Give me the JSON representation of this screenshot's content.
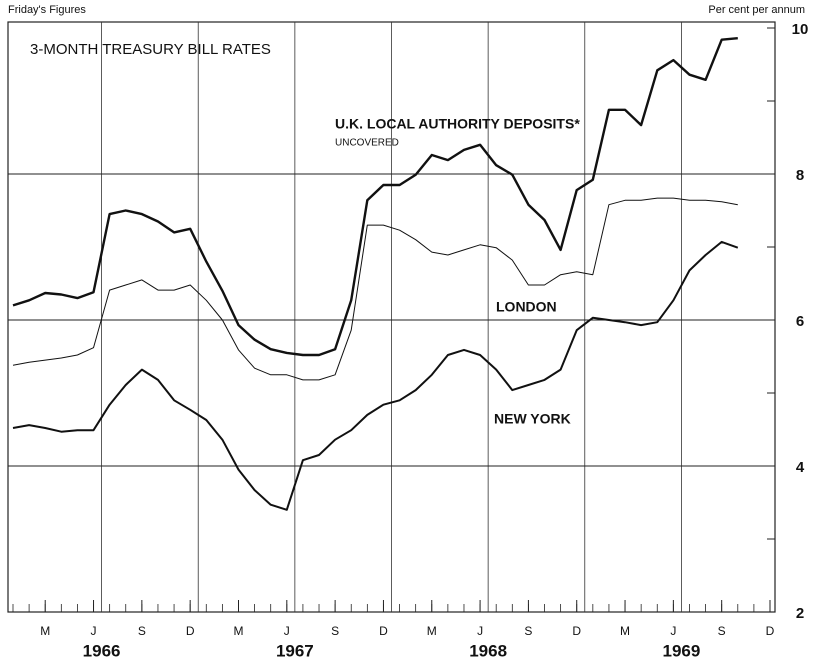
{
  "chart_data": {
    "type": "line",
    "title": "3-MONTH TREASURY BILL RATES",
    "subtitle": "Friday's Figures",
    "y_axis_label": "Per cent per annum",
    "annotations": [
      "UNCOVERED"
    ],
    "x": [
      "1966-01",
      "1966-02",
      "1966-03",
      "1966-04",
      "1966-05",
      "1966-06",
      "1966-07",
      "1966-08",
      "1966-09",
      "1966-10",
      "1966-11",
      "1966-12",
      "1967-01",
      "1967-02",
      "1967-03",
      "1967-04",
      "1967-05",
      "1967-06",
      "1967-07",
      "1967-08",
      "1967-09",
      "1967-10",
      "1967-11",
      "1967-12",
      "1968-01",
      "1968-02",
      "1968-03",
      "1968-04",
      "1968-05",
      "1968-06",
      "1968-07",
      "1968-08",
      "1968-09",
      "1968-10",
      "1968-11",
      "1968-12",
      "1969-01",
      "1969-02",
      "1969-03",
      "1969-04",
      "1969-05",
      "1969-06",
      "1969-07",
      "1969-08",
      "1969-09",
      "1969-10"
    ],
    "series": [
      {
        "name": "U.K. LOCAL AUTHORITY DEPOSITS*",
        "color": "#111111",
        "values": [
          6.2,
          6.27,
          6.37,
          6.35,
          6.3,
          6.38,
          7.45,
          7.5,
          7.45,
          7.35,
          7.2,
          7.25,
          6.8,
          6.4,
          5.93,
          5.73,
          5.6,
          5.55,
          5.52,
          5.52,
          5.6,
          6.27,
          7.64,
          7.85,
          7.85,
          7.99,
          8.26,
          8.19,
          8.33,
          8.4,
          8.12,
          7.99,
          7.58,
          7.37,
          6.96,
          7.78,
          7.92,
          8.88,
          8.88,
          8.67,
          9.42,
          9.56,
          9.36,
          9.29,
          9.84,
          9.86
        ]
      },
      {
        "name": "LONDON",
        "color": "#111111",
        "values": [
          5.38,
          5.42,
          5.45,
          5.48,
          5.52,
          5.62,
          6.41,
          6.48,
          6.55,
          6.41,
          6.41,
          6.48,
          6.27,
          6.0,
          5.59,
          5.34,
          5.25,
          5.25,
          5.18,
          5.18,
          5.25,
          5.86,
          7.3,
          7.3,
          7.23,
          7.1,
          6.93,
          6.89,
          6.96,
          7.03,
          6.99,
          6.82,
          6.48,
          6.48,
          6.62,
          6.66,
          6.62,
          7.58,
          7.64,
          7.64,
          7.67,
          7.67,
          7.64,
          7.64,
          7.62,
          7.58
        ]
      },
      {
        "name": "NEW YORK",
        "color": "#111111",
        "values": [
          4.52,
          4.56,
          4.52,
          4.47,
          4.49,
          4.49,
          4.84,
          5.11,
          5.32,
          5.18,
          4.9,
          4.77,
          4.63,
          4.36,
          3.95,
          3.67,
          3.47,
          3.4,
          4.08,
          4.15,
          4.36,
          4.49,
          4.7,
          4.84,
          4.9,
          5.04,
          5.25,
          5.52,
          5.59,
          5.52,
          5.32,
          5.04,
          5.11,
          5.18,
          5.32,
          5.86,
          6.03,
          6.0,
          5.97,
          5.93,
          5.97,
          6.27,
          6.68,
          6.89,
          7.07,
          6.99
        ]
      }
    ],
    "xlim": [
      "1966-01",
      "1969-12"
    ],
    "xticks": [
      {
        "value": "1966-03",
        "label": "M"
      },
      {
        "value": "1966-06",
        "label": "J"
      },
      {
        "value": "1966-09",
        "label": "S"
      },
      {
        "value": "1966-12",
        "label": "D"
      },
      {
        "value": "1967-03",
        "label": "M"
      },
      {
        "value": "1967-06",
        "label": "J"
      },
      {
        "value": "1967-09",
        "label": "S"
      },
      {
        "value": "1967-12",
        "label": "D"
      },
      {
        "value": "1968-03",
        "label": "M"
      },
      {
        "value": "1968-06",
        "label": "J"
      },
      {
        "value": "1968-09",
        "label": "S"
      },
      {
        "value": "1968-12",
        "label": "D"
      },
      {
        "value": "1969-03",
        "label": "M"
      },
      {
        "value": "1969-06",
        "label": "J"
      },
      {
        "value": "1969-09",
        "label": "S"
      },
      {
        "value": "1969-12",
        "label": "D"
      }
    ],
    "years": [
      "1966",
      "1967",
      "1968",
      "1969"
    ],
    "ylim": [
      2,
      10
    ],
    "yticks": [
      2,
      4,
      6,
      8,
      10
    ],
    "grid": true
  }
}
